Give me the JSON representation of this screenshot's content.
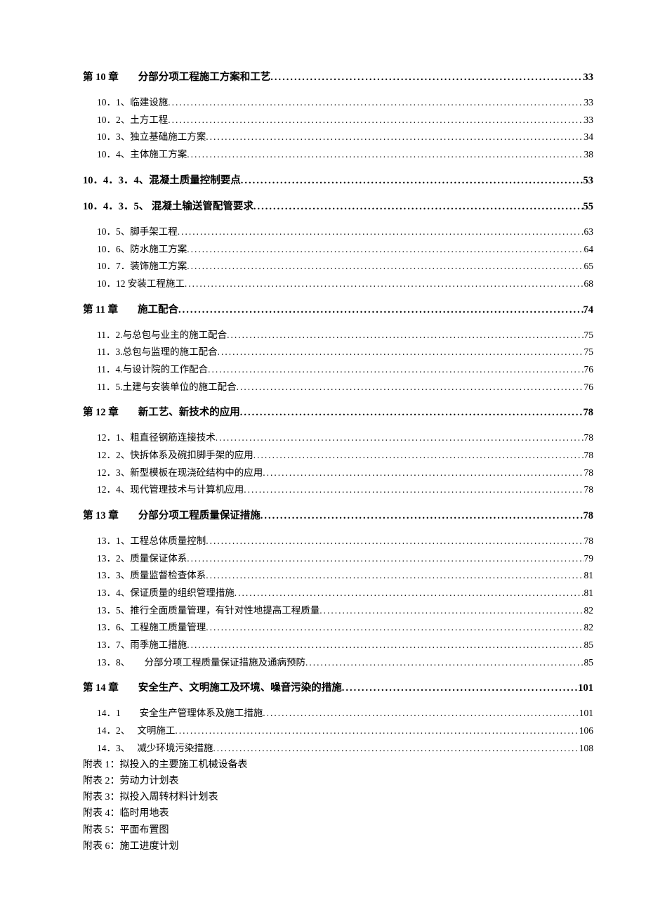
{
  "toc": [
    {
      "type": "chapter",
      "prefix": "第 10 章",
      "title": "分部分项工程施工方案和工艺",
      "page": "33"
    },
    {
      "type": "section",
      "title": "10．1、临建设施",
      "page": "33"
    },
    {
      "type": "section",
      "title": "10．2、土方工程",
      "page": "33"
    },
    {
      "type": "section",
      "title": "10．3、独立基础施工方案",
      "page": "34"
    },
    {
      "type": "section",
      "title": "10．4、主体施工方案",
      "page": "38"
    },
    {
      "type": "chapter",
      "prefix": "",
      "title": "10．4．3．4、混凝土质量控制要点",
      "page": "53"
    },
    {
      "type": "chapter",
      "prefix": "",
      "title": "10．4．3．5、 混凝土输送管配管要求",
      "page": "55"
    },
    {
      "type": "section",
      "title": "10．5、脚手架工程",
      "page": "63"
    },
    {
      "type": "section",
      "title": "10．6、防水施工方案",
      "page": "64"
    },
    {
      "type": "section",
      "title": "10．7．装饰施工方案",
      "page": "65"
    },
    {
      "type": "section",
      "title": "10．12 安装工程施工",
      "page": "68"
    },
    {
      "type": "chapter",
      "prefix": "第 11 章",
      "title": "施工配合",
      "page": "74"
    },
    {
      "type": "section",
      "title": "11．2.与总包与业主的施工配合",
      "page": "75"
    },
    {
      "type": "section",
      "title": "11．3.总包与监理的施工配合",
      "page": "75"
    },
    {
      "type": "section",
      "title": "11．4.与设计院的工作配合",
      "page": "76"
    },
    {
      "type": "section",
      "title": "11．5.土建与安装单位的施工配合",
      "page": "76"
    },
    {
      "type": "chapter",
      "prefix": "第 12 章",
      "title": "新工艺、新技术的应用",
      "page": "78"
    },
    {
      "type": "section",
      "title": "12．1、粗直径钢筋连接技术",
      "page": "78"
    },
    {
      "type": "section",
      "title": "12．2、快拆体系及碗扣脚手架的应用",
      "page": "78"
    },
    {
      "type": "section",
      "title": "12．3、新型模板在现浇砼结构中的应用",
      "page": "78"
    },
    {
      "type": "section",
      "title": "12．4、现代管理技术与计算机应用",
      "page": "78"
    },
    {
      "type": "chapter",
      "prefix": "第 13 章",
      "title": "分部分项工程质量保证措施",
      "page": "78"
    },
    {
      "type": "section",
      "title": "13．1、工程总体质量控制",
      "page": "78"
    },
    {
      "type": "section",
      "title": "13．2、质量保证体系",
      "page": "79"
    },
    {
      "type": "section",
      "title": "13．3、质量监督检查体系",
      "page": "81"
    },
    {
      "type": "section",
      "title": "13．4、保证质量的组织管理措施",
      "page": "81"
    },
    {
      "type": "section",
      "title": "13．5、推行全面质量管理，有针对性地提高工程质量",
      "page": "82"
    },
    {
      "type": "section",
      "title": "13．6、工程施工质量管理",
      "page": "82"
    },
    {
      "type": "section",
      "title": "13．7、雨季施工措施",
      "page": "85"
    },
    {
      "type": "section",
      "title": "13．8、　　分部分项工程质量保证措施及通病预防",
      "page": "85"
    },
    {
      "type": "chapter",
      "prefix": "第 14 章",
      "title": "安全生产、文明施工及环境、噪音污染的措施",
      "page": "101"
    },
    {
      "type": "section",
      "title": "14．1　　安全生产管理体系及施工措施",
      "page": "101"
    },
    {
      "type": "section",
      "title": "14．2、　 文明施工",
      "page": "106"
    },
    {
      "type": "section",
      "title": "14．3、　 减少环境污染措施",
      "page": "108"
    }
  ],
  "appendix": [
    "附表 1：拟投入的主要施工机械设备表",
    "附表 2：劳动力计划表",
    "附表 3：拟投入周转材料计划表",
    "附表 4：临时用地表",
    "附表 5：平面布置图",
    "附表 6：施工进度计划"
  ],
  "dots": "......................................................................................................................................................................................."
}
